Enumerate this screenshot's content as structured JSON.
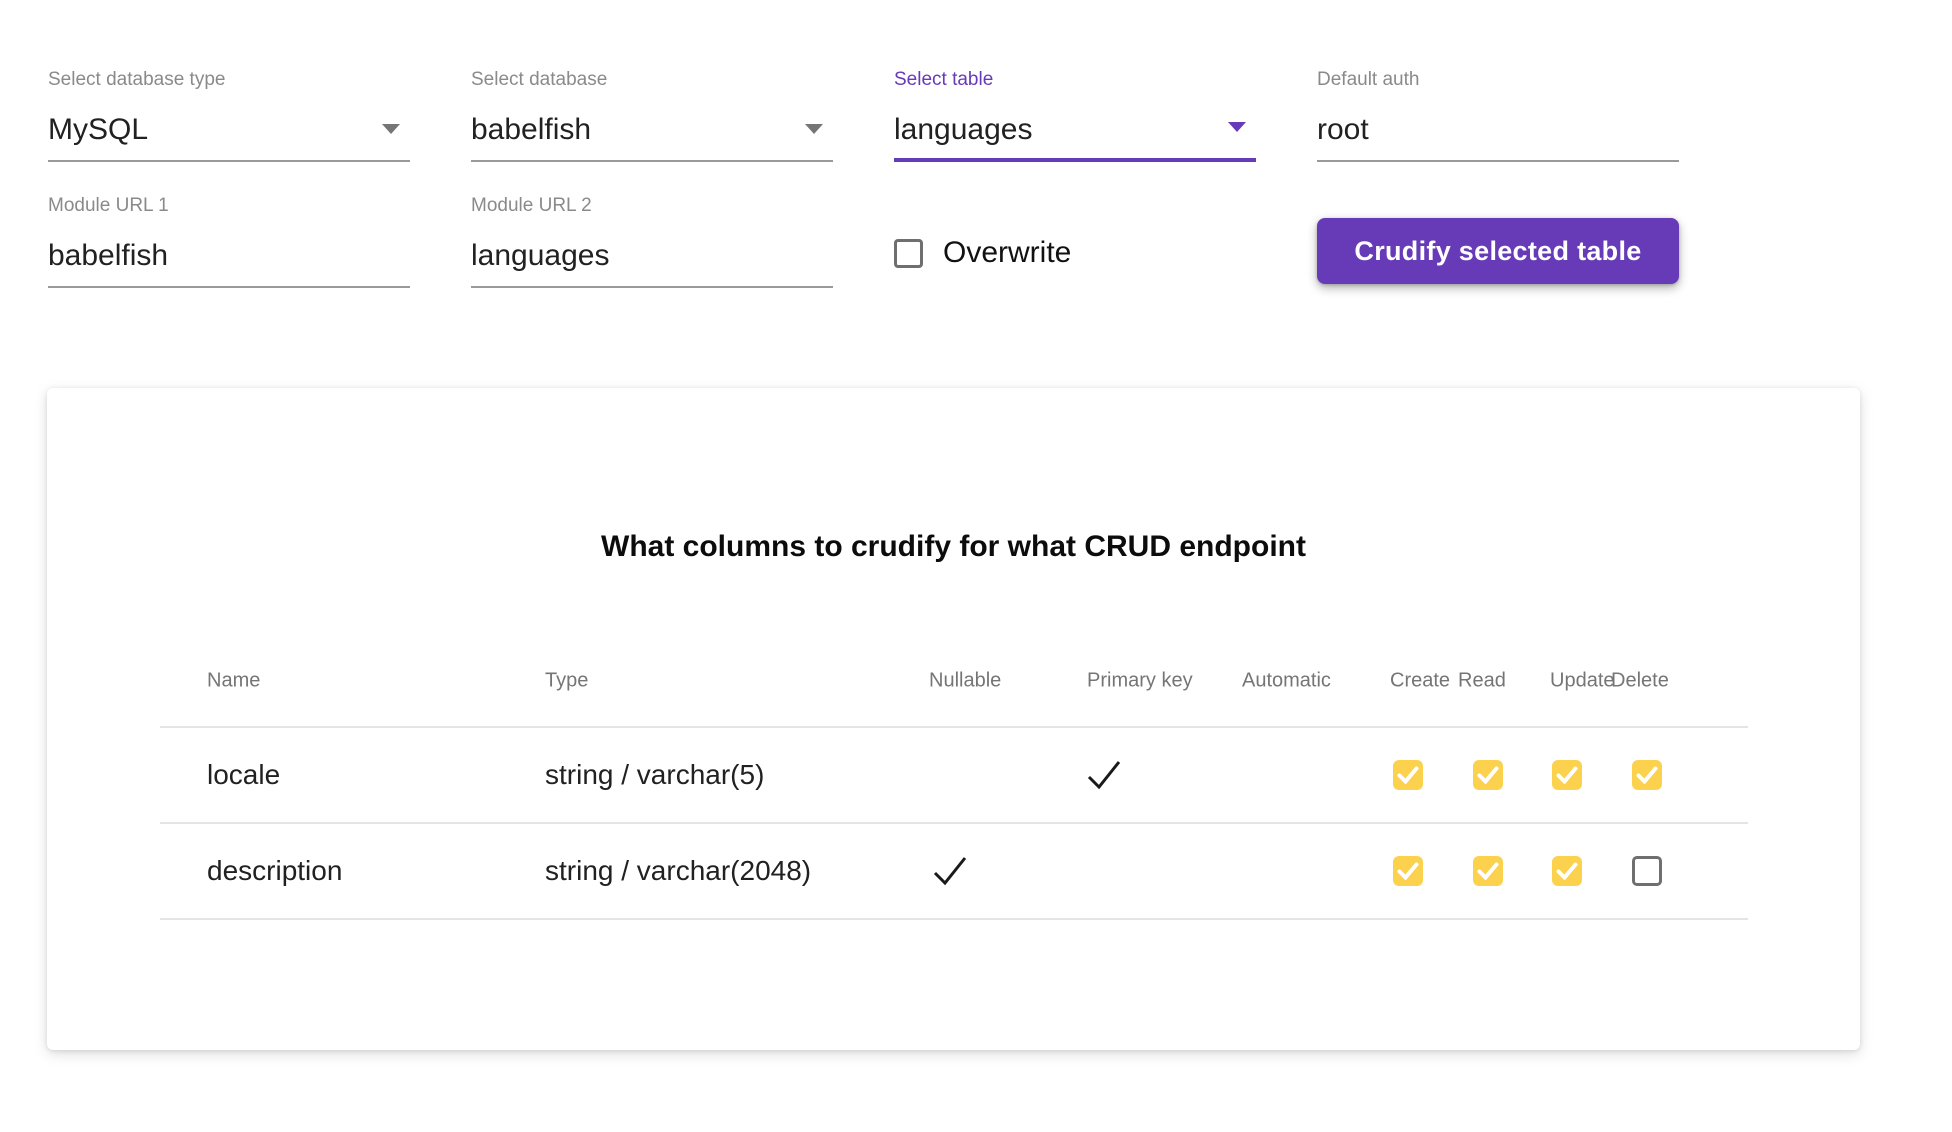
{
  "form": {
    "fields": [
      {
        "label": "Select database type",
        "value": "MySQL"
      },
      {
        "label": "Select database",
        "value": "babelfish"
      },
      {
        "label": "Select table",
        "value": "languages"
      },
      {
        "label": "Default auth",
        "value": "root"
      },
      {
        "label": "Module URL 1",
        "value": "babelfish"
      },
      {
        "label": "Module URL 2",
        "value": "languages"
      }
    ],
    "overwrite": {
      "label": "Overwrite",
      "checked": false
    },
    "crudify_button": {
      "label": "Crudify selected table"
    }
  },
  "card": {
    "title": "What columns to crudify for what CRUD endpoint",
    "table": {
      "headers": [
        "Name",
        "Type",
        "Nullable",
        "Primary key",
        "Automatic",
        "Create",
        "Read",
        "Update",
        "Delete"
      ],
      "rows": [
        {
          "name": "locale",
          "type": "string / varchar(5)",
          "nullable": false,
          "primary_key": true,
          "automatic": false,
          "create": true,
          "read": true,
          "update": true,
          "delete": true
        },
        {
          "name": "description",
          "type": "string / varchar(2048)",
          "nullable": true,
          "primary_key": false,
          "automatic": false,
          "create": true,
          "read": true,
          "update": true,
          "delete": false
        }
      ]
    }
  },
  "icons": {
    "select_chevron": "chevron-down",
    "row_check": "checkmark",
    "checkbox_check": "checkmark"
  },
  "colors": {
    "accent_purple": "#673ab7",
    "checkbox_amber": "#fbd14d",
    "label_gray": "#8a8a8a",
    "header_gray": "#757575",
    "text_dark": "#212121",
    "divider_gray": "#e4e4e4"
  }
}
